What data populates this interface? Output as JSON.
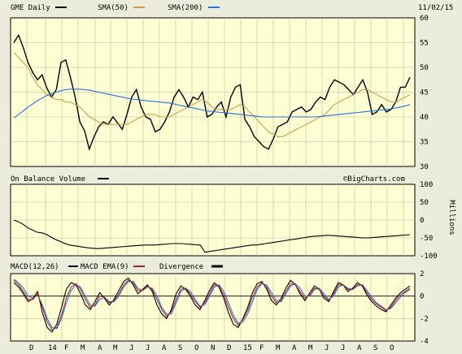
{
  "header": {
    "legend": [
      {
        "label": "GME Daily",
        "color": "#000000"
      },
      {
        "label": "SMA(50)",
        "color": "#c8a050"
      },
      {
        "label": "SMA(200)",
        "color": "#2a6fdb"
      }
    ],
    "date": "11/02/15"
  },
  "watermark": "©BigCharts.com",
  "colors": {
    "panel_bg": "#ffffd4",
    "page_bg": "#ececdc",
    "grid": "#b8b8a0"
  },
  "x_axis": {
    "labels": [
      "D",
      "14",
      "F",
      "M",
      "A",
      "M",
      "J",
      "J",
      "A",
      "S",
      "O",
      "N",
      "D",
      "15",
      "F",
      "M",
      "A",
      "M",
      "J",
      "J",
      "A",
      "S",
      "O"
    ]
  },
  "chart_data": [
    {
      "type": "line",
      "title": "GME Daily",
      "ylim": [
        30,
        60
      ],
      "yticks": [
        30,
        35,
        40,
        45,
        50,
        55,
        60
      ],
      "grid": true,
      "series": [
        {
          "name": "GME Daily",
          "color": "#000000",
          "values": [
            55,
            56.5,
            54,
            51,
            49,
            47.5,
            48.5,
            45.8,
            44,
            45.5,
            51,
            51.5,
            48,
            44,
            39,
            37.2,
            33.5,
            36,
            38,
            39,
            38.5,
            40,
            38.8,
            37.5,
            40.5,
            44,
            45.5,
            42,
            40,
            39.5,
            37,
            37.5,
            39,
            41,
            44,
            45.5,
            44,
            42,
            44,
            43.5,
            45,
            40,
            40.5,
            42,
            43,
            40,
            44,
            46,
            46.5,
            39.5,
            38,
            36,
            35,
            34,
            33.5,
            35.5,
            38,
            38.5,
            39,
            41,
            41.5,
            42,
            41,
            41.5,
            43,
            44,
            43.5,
            46,
            47.5,
            47,
            46.5,
            45.5,
            44.5,
            46,
            47.5,
            45,
            40.5,
            41,
            42.5,
            41,
            41.5,
            43,
            46,
            46,
            48
          ]
        },
        {
          "name": "SMA(50)",
          "color": "#c8a050",
          "values": [
            53,
            52,
            51,
            50,
            48,
            46.5,
            45.5,
            44.5,
            44,
            43.5,
            43.5,
            43,
            43,
            42.5,
            42,
            41,
            40,
            39.5,
            39,
            38.5,
            38.5,
            38.5,
            38.5,
            38.5,
            38.5,
            39,
            39.5,
            40,
            40.5,
            40.5,
            40.5,
            40,
            40,
            40,
            40.5,
            41,
            41.5,
            42,
            42.5,
            43,
            43.5,
            43,
            42,
            41.5,
            41.5,
            41.5,
            41.5,
            42,
            42.5,
            42,
            41,
            40,
            39,
            38,
            37,
            36.5,
            36,
            36,
            36.5,
            37,
            37.5,
            38,
            38.5,
            39,
            39.5,
            40,
            40.5,
            41.5,
            42.5,
            43,
            43.5,
            44,
            44.5,
            45,
            45.5,
            45.5,
            45,
            44.5,
            44,
            43.5,
            43,
            43,
            43.5,
            44,
            44.5
          ]
        },
        {
          "name": "SMA(200)",
          "color": "#2a6fdb",
          "values": [
            39.8,
            40.5,
            41.2,
            42,
            42.6,
            43.3,
            43.8,
            44.3,
            44.7,
            45,
            45.3,
            45.5,
            45.6,
            45.6,
            45.6,
            45.5,
            45.4,
            45.2,
            45,
            44.8,
            44.6,
            44.4,
            44.2,
            44,
            43.8,
            43.6,
            43.5,
            43.4,
            43.3,
            43.2,
            43.1,
            43,
            42.9,
            42.8,
            42.6,
            42.4,
            42.2,
            42,
            41.8,
            41.6,
            41.4,
            41.2,
            41.1,
            41,
            40.9,
            40.8,
            40.7,
            40.6,
            40.5,
            40.4,
            40.3,
            40.2,
            40.1,
            40,
            40,
            40,
            40,
            40,
            40,
            40,
            40,
            40,
            40,
            40,
            40,
            40.1,
            40.2,
            40.3,
            40.4,
            40.5,
            40.6,
            40.7,
            40.8,
            40.9,
            41,
            41.1,
            41.2,
            41.3,
            41.4,
            41.5,
            41.6,
            41.8,
            42,
            42.2,
            42.5
          ]
        }
      ]
    },
    {
      "type": "line",
      "title": "On Balance Volume",
      "ylabel": "Millions",
      "ylim": [
        -100,
        100
      ],
      "yticks": [
        100,
        50,
        0,
        -50,
        -100
      ],
      "grid": true,
      "series": [
        {
          "name": "On Balance Volume",
          "color": "#000000",
          "values": [
            0,
            -5,
            -12,
            -22,
            -28,
            -34,
            -36,
            -40,
            -48,
            -55,
            -60,
            -66,
            -70,
            -72,
            -74,
            -76,
            -78,
            -79,
            -80,
            -79,
            -78,
            -77,
            -76,
            -75,
            -74,
            -73,
            -72,
            -71,
            -70,
            -70,
            -70,
            -69,
            -68,
            -67,
            -66,
            -66,
            -66,
            -67,
            -68,
            -69,
            -70,
            -90,
            -88,
            -86,
            -84,
            -82,
            -80,
            -78,
            -76,
            -74,
            -72,
            -70,
            -70,
            -68,
            -66,
            -64,
            -62,
            -60,
            -58,
            -56,
            -54,
            -52,
            -50,
            -48,
            -46,
            -45,
            -44,
            -43,
            -43,
            -44,
            -45,
            -46,
            -47,
            -48,
            -49,
            -50,
            -50,
            -49,
            -48,
            -47,
            -46,
            -45,
            -44,
            -43,
            -42,
            -41
          ]
        }
      ]
    },
    {
      "type": "line",
      "title": "MACD(12,26)",
      "ylim": [
        -4,
        2
      ],
      "yticks": [
        2,
        0,
        -2,
        -4
      ],
      "grid": true,
      "series": [
        {
          "name": "MACD(12,26)",
          "color": "#000000",
          "values": [
            1.2,
            0.8,
            0.2,
            -0.5,
            -0.2,
            0.4,
            -1.5,
            -2.8,
            -3.2,
            -2.5,
            -1.0,
            0.6,
            1.2,
            1.0,
            0.2,
            -0.8,
            -1.2,
            -0.5,
            0.3,
            -0.2,
            -0.8,
            -0.3,
            0.5,
            1.3,
            1.6,
            1.0,
            0.2,
            0.6,
            1.0,
            0.4,
            -0.8,
            -1.6,
            -2.0,
            -1.2,
            0.2,
            0.9,
            0.6,
            0.0,
            -0.8,
            -1.2,
            -0.4,
            0.5,
            1.2,
            0.8,
            -0.2,
            -1.5,
            -2.5,
            -2.8,
            -2.0,
            -1.0,
            0.3,
            1.1,
            1.3,
            0.6,
            -0.4,
            -0.8,
            -0.2,
            0.7,
            1.4,
            1.0,
            0.2,
            -0.4,
            0.3,
            0.9,
            0.6,
            -0.2,
            -0.5,
            0.4,
            1.2,
            1.0,
            0.4,
            0.7,
            1.2,
            0.9,
            0.1,
            -0.5,
            -0.9,
            -1.2,
            -1.4,
            -0.8,
            -0.2,
            0.3,
            0.6,
            0.9
          ]
        },
        {
          "name": "MACD EMA(9)",
          "color": "#2a6fdb",
          "values": [
            1.5,
            1.2,
            0.7,
            0.0,
            -0.2,
            0.1,
            -0.8,
            -2.0,
            -2.8,
            -2.9,
            -2.0,
            -0.6,
            0.5,
            1.0,
            0.8,
            0.0,
            -0.8,
            -0.9,
            -0.3,
            -0.1,
            -0.5,
            -0.5,
            0.0,
            0.8,
            1.3,
            1.3,
            0.7,
            0.5,
            0.8,
            0.7,
            0.0,
            -1.0,
            -1.6,
            -1.6,
            -0.6,
            0.4,
            0.7,
            0.4,
            -0.3,
            -0.9,
            -0.8,
            0.0,
            0.8,
            1.0,
            0.4,
            -0.6,
            -1.7,
            -2.4,
            -2.3,
            -1.6,
            -0.5,
            0.6,
            1.1,
            1.0,
            0.3,
            -0.4,
            -0.5,
            0.2,
            0.9,
            1.1,
            0.7,
            0.0,
            0.0,
            0.6,
            0.7,
            0.2,
            -0.3,
            0.0,
            0.8,
            1.0,
            0.7,
            0.6,
            0.9,
            1.0,
            0.5,
            -0.1,
            -0.6,
            -0.9,
            -1.2,
            -1.1,
            -0.6,
            -0.1,
            0.3,
            0.6
          ]
        },
        {
          "name": "Divergence",
          "color": "#a52a2a",
          "values": [
            1.4,
            1.0,
            0.4,
            -0.3,
            -0.3,
            0.2,
            -1.0,
            -2.3,
            -3.0,
            -2.8,
            -1.7,
            -0.2,
            0.8,
            1.1,
            0.6,
            -0.3,
            -1.0,
            -0.8,
            0.0,
            -0.1,
            -0.6,
            -0.4,
            0.2,
            1.0,
            1.4,
            1.2,
            0.5,
            0.5,
            0.9,
            0.6,
            -0.3,
            -1.2,
            -1.8,
            -1.4,
            -0.3,
            0.6,
            0.7,
            0.2,
            -0.5,
            -1.0,
            -0.6,
            0.2,
            1.0,
            0.9,
            0.1,
            -1.0,
            -2.0,
            -2.6,
            -2.1,
            -1.3,
            -0.1,
            0.8,
            1.2,
            0.8,
            0.0,
            -0.6,
            -0.4,
            0.4,
            1.1,
            1.0,
            0.4,
            -0.2,
            0.1,
            0.7,
            0.6,
            0.0,
            -0.4,
            0.2,
            1.0,
            1.0,
            0.6,
            0.6,
            1.0,
            1.0,
            0.3,
            -0.3,
            -0.7,
            -1.0,
            -1.3,
            -1.0,
            -0.4,
            0.1,
            0.4,
            0.7
          ]
        }
      ]
    }
  ]
}
